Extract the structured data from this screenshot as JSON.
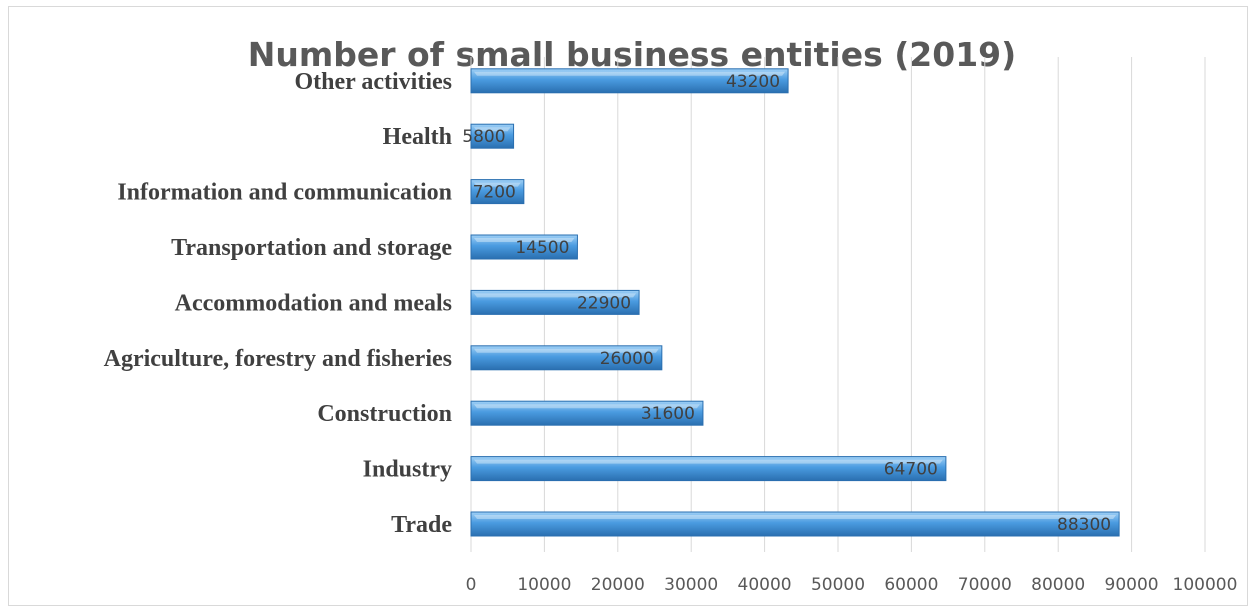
{
  "chart_data": {
    "type": "bar",
    "orientation": "horizontal",
    "title": "Number of small business entities (2019)",
    "categories": [
      "Trade",
      "Industry",
      "Construction",
      "Agriculture, forestry and fisheries",
      "Accommodation and meals",
      "Transportation and storage",
      "Information and communication",
      "Health",
      "Other activities"
    ],
    "values": [
      88300,
      64700,
      31600,
      26000,
      22900,
      14500,
      7200,
      5800,
      43200
    ],
    "xticks": [
      "0",
      "10000",
      "20000",
      "30000",
      "40000",
      "50000",
      "60000",
      "70000",
      "80000",
      "90000",
      "100000"
    ],
    "xlim": [
      0,
      100000
    ],
    "xlabel": "",
    "ylabel": "",
    "grid": true,
    "data_labels": true,
    "legend": false,
    "colors": {
      "bar": "#3d8fd8",
      "bar_light": "#8cc4f1",
      "bar_dark": "#2a6fb0",
      "grid": "#d9d9d9"
    }
  }
}
